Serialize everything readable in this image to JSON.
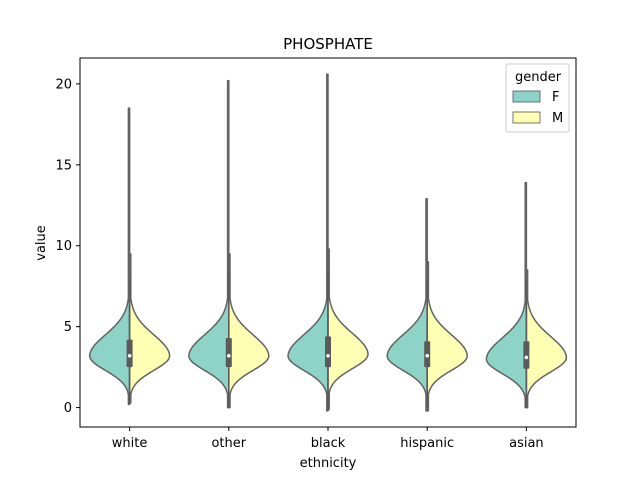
{
  "chart_data": {
    "type": "violin",
    "title": "PHOSPHATE",
    "xlabel": "ethnicity",
    "ylabel": "value",
    "categories": [
      "white",
      "other",
      "black",
      "hispanic",
      "asian"
    ],
    "ylim": [
      -1.2,
      21.6
    ],
    "yticks": [
      0,
      5,
      10,
      15,
      20
    ],
    "split": true,
    "legend": {
      "title": "gender",
      "position": "top-right",
      "entries": [
        {
          "label": "F",
          "color": "#8dd3c7"
        },
        {
          "label": "M",
          "color": "#ffffb3"
        }
      ]
    },
    "series": [
      {
        "name": "F",
        "color": "#8dd3c7",
        "violins": [
          {
            "min": 0.2,
            "max": 18.5,
            "q1": 2.5,
            "median": 3.2,
            "q3": 4.2,
            "mode": 3.2
          },
          {
            "min": 0.0,
            "max": 20.2,
            "q1": 2.5,
            "median": 3.2,
            "q3": 4.3,
            "mode": 3.2
          },
          {
            "min": -0.2,
            "max": 20.6,
            "q1": 2.5,
            "median": 3.2,
            "q3": 4.4,
            "mode": 3.2
          },
          {
            "min": -0.2,
            "max": 12.9,
            "q1": 2.5,
            "median": 3.2,
            "q3": 4.1,
            "mode": 3.2
          },
          {
            "min": 0.0,
            "max": 13.9,
            "q1": 2.4,
            "median": 3.1,
            "q3": 4.1,
            "mode": 3.0
          }
        ]
      },
      {
        "name": "M",
        "color": "#ffffb3",
        "violins": [
          {
            "min": 0.3,
            "max": 9.5,
            "q1": 2.6,
            "median": 3.2,
            "q3": 4.1,
            "mode": 3.2
          },
          {
            "min": 0.0,
            "max": 9.5,
            "q1": 2.6,
            "median": 3.2,
            "q3": 4.2,
            "mode": 3.2
          },
          {
            "min": -0.1,
            "max": 9.8,
            "q1": 2.6,
            "median": 3.2,
            "q3": 4.3,
            "mode": 3.3
          },
          {
            "min": -0.2,
            "max": 9.0,
            "q1": 2.6,
            "median": 3.2,
            "q3": 4.0,
            "mode": 3.2
          },
          {
            "min": 0.0,
            "max": 8.5,
            "q1": 2.5,
            "median": 3.1,
            "q3": 4.0,
            "mode": 3.1
          }
        ]
      }
    ]
  }
}
